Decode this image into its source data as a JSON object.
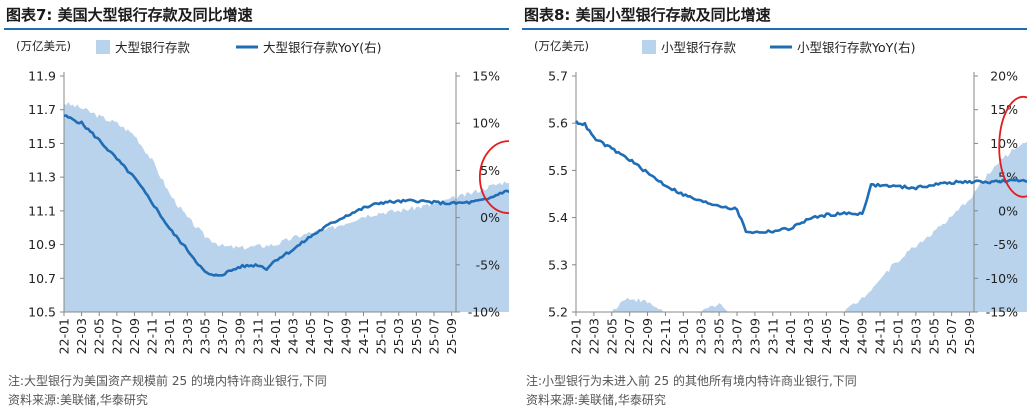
{
  "charts": [
    {
      "id": "left",
      "figure_title": "图表7:  美国大型银行存款及同比增速",
      "unit": "(万亿美元)",
      "note": "注:大型银行为美国资产规模前 25 的境内特许商业银行,下同",
      "source": "资料来源:美联储,华泰研究",
      "chart_data": {
        "type": "area+line",
        "x_ticks": [
          "22-01",
          "22-03",
          "22-05",
          "22-07",
          "22-09",
          "22-11",
          "23-01",
          "23-03",
          "23-05",
          "23-07",
          "23-09",
          "23-11",
          "24-01",
          "24-03",
          "24-05",
          "24-07",
          "24-09",
          "24-11",
          "25-01",
          "25-03",
          "25-05",
          "25-07",
          "25-09"
        ],
        "y_left": {
          "min": 10.5,
          "max": 11.9,
          "ticks": [
            "11.9",
            "11.7",
            "11.5",
            "11.3",
            "11.1",
            "10.9",
            "10.7",
            "10.5"
          ]
        },
        "y_right": {
          "min": -10,
          "max": 15,
          "ticks": [
            "15%",
            "10%",
            "5%",
            "0%",
            "-5%",
            "-10%"
          ]
        },
        "series": [
          {
            "name": "大型银行存款",
            "axis": "left",
            "kind": "area",
            "color": "#b9d3ec",
            "anchors": [
              [
                0,
                11.74
              ],
              [
                2,
                11.71
              ],
              [
                4,
                11.66
              ],
              [
                6,
                11.62
              ],
              [
                8,
                11.55
              ],
              [
                10,
                11.4
              ],
              [
                12,
                11.2
              ],
              [
                14,
                11.06
              ],
              [
                16,
                10.95
              ],
              [
                18,
                10.89
              ],
              [
                20,
                10.88
              ],
              [
                22,
                10.89
              ],
              [
                24,
                10.9
              ],
              [
                26,
                10.94
              ],
              [
                28,
                10.97
              ],
              [
                30,
                10.99
              ],
              [
                32,
                11.03
              ],
              [
                34,
                11.07
              ],
              [
                36,
                11.09
              ],
              [
                38,
                11.1
              ],
              [
                40,
                11.12
              ],
              [
                42,
                11.14
              ],
              [
                44,
                11.17
              ],
              [
                46,
                11.2
              ],
              [
                48,
                11.24
              ],
              [
                50,
                11.27
              ],
              [
                52,
                11.31
              ],
              [
                54,
                11.36
              ],
              [
                56,
                11.42
              ]
            ]
          },
          {
            "name": "大型银行存款YoY(右)",
            "axis": "right",
            "kind": "line",
            "color": "#1f6db5",
            "anchors": [
              [
                0,
                10.8
              ],
              [
                2,
                10.0
              ],
              [
                4,
                8.2
              ],
              [
                6,
                6.2
              ],
              [
                8,
                4.2
              ],
              [
                10,
                1.6
              ],
              [
                12,
                -1.2
              ],
              [
                14,
                -3.4
              ],
              [
                16,
                -5.8
              ],
              [
                17,
                -6.2
              ],
              [
                18,
                -6.0
              ],
              [
                20,
                -5.2
              ],
              [
                22,
                -5.0
              ],
              [
                23,
                -5.4
              ],
              [
                24,
                -4.5
              ],
              [
                26,
                -3.4
              ],
              [
                28,
                -2.0
              ],
              [
                30,
                -0.8
              ],
              [
                32,
                0.2
              ],
              [
                34,
                1.0
              ],
              [
                36,
                1.6
              ],
              [
                38,
                1.7
              ],
              [
                40,
                1.8
              ],
              [
                42,
                1.6
              ],
              [
                44,
                1.5
              ],
              [
                46,
                1.6
              ],
              [
                48,
                1.9
              ],
              [
                50,
                2.8
              ],
              [
                52,
                2.4
              ],
              [
                54,
                3.2
              ],
              [
                56,
                3.4
              ]
            ]
          }
        ],
        "annotation": {
          "shape": "ellipse",
          "color": "#e11d1d",
          "x": 50.5,
          "y_left": 11.3
        }
      }
    },
    {
      "id": "right",
      "figure_title": "图表8:  美国小型银行存款及同比增速",
      "unit": "(万亿美元)",
      "note": "注:小型银行为未进入前 25 的其他所有境内特许商业银行,下同",
      "source": "资料来源:美联储,华泰研究",
      "chart_data": {
        "type": "area+line",
        "x_ticks": [
          "22-01",
          "22-03",
          "22-05",
          "22-07",
          "22-09",
          "22-11",
          "23-01",
          "23-03",
          "23-05",
          "23-07",
          "23-09",
          "23-11",
          "24-01",
          "24-03",
          "24-05",
          "24-07",
          "24-09",
          "24-11",
          "25-01",
          "25-03",
          "25-05",
          "25-07",
          "25-09"
        ],
        "y_left": {
          "min": 5.2,
          "max": 5.7,
          "ticks": [
            "5.7",
            "5.6",
            "5.5",
            "5.4",
            "5.3",
            "5.2"
          ]
        },
        "y_right": {
          "min": -15,
          "max": 20,
          "ticks": [
            "20%",
            "15%",
            "10%",
            "5%",
            "0%",
            "-5%",
            "-10%",
            "-15%"
          ]
        },
        "series": [
          {
            "name": "小型银行存款",
            "axis": "left",
            "kind": "area",
            "color": "#b9d3ec",
            "anchors": [
              [
                0,
                5.2
              ],
              [
                4,
                5.2
              ],
              [
                5,
                5.22
              ],
              [
                6,
                5.23
              ],
              [
                8,
                5.22
              ],
              [
                10,
                5.2
              ],
              [
                12,
                5.2
              ],
              [
                14,
                5.2
              ],
              [
                16,
                5.22
              ],
              [
                17,
                5.2
              ],
              [
                19,
                5.2
              ],
              [
                21,
                5.2
              ],
              [
                23,
                5.2
              ],
              [
                26,
                5.2
              ],
              [
                28,
                5.2
              ],
              [
                30,
                5.2
              ],
              [
                32,
                5.23
              ],
              [
                34,
                5.27
              ],
              [
                36,
                5.31
              ],
              [
                38,
                5.34
              ],
              [
                40,
                5.37
              ],
              [
                42,
                5.4
              ],
              [
                44,
                5.44
              ],
              [
                46,
                5.49
              ],
              [
                48,
                5.53
              ],
              [
                50,
                5.56
              ],
              [
                52,
                5.58
              ],
              [
                54,
                5.6
              ],
              [
                56,
                5.61
              ]
            ]
          },
          {
            "name": "小型银行存款YoY(右)",
            "axis": "right",
            "kind": "line",
            "color": "#1f6db5",
            "anchors": [
              [
                0,
                13.2
              ],
              [
                1,
                12.8
              ],
              [
                2,
                10.8
              ],
              [
                4,
                9.2
              ],
              [
                6,
                7.6
              ],
              [
                8,
                5.6
              ],
              [
                10,
                3.8
              ],
              [
                12,
                2.4
              ],
              [
                14,
                1.4
              ],
              [
                16,
                0.8
              ],
              [
                18,
                0.2
              ],
              [
                19,
                -3.0
              ],
              [
                20,
                -3.2
              ],
              [
                22,
                -3.0
              ],
              [
                24,
                -2.6
              ],
              [
                26,
                -1.2
              ],
              [
                28,
                -0.6
              ],
              [
                30,
                -0.4
              ],
              [
                32,
                -0.4
              ],
              [
                33,
                3.8
              ],
              [
                34,
                3.8
              ],
              [
                36,
                3.6
              ],
              [
                38,
                3.4
              ],
              [
                40,
                3.9
              ],
              [
                42,
                4.2
              ],
              [
                44,
                4.3
              ],
              [
                46,
                4.3
              ],
              [
                48,
                4.4
              ],
              [
                50,
                4.5
              ],
              [
                52,
                4.5
              ],
              [
                54,
                4.4
              ],
              [
                56,
                4.2
              ]
            ]
          }
        ],
        "annotation": {
          "shape": "ellipse",
          "color": "#e11d1d",
          "x": 50,
          "y_left": 5.55
        }
      }
    }
  ]
}
